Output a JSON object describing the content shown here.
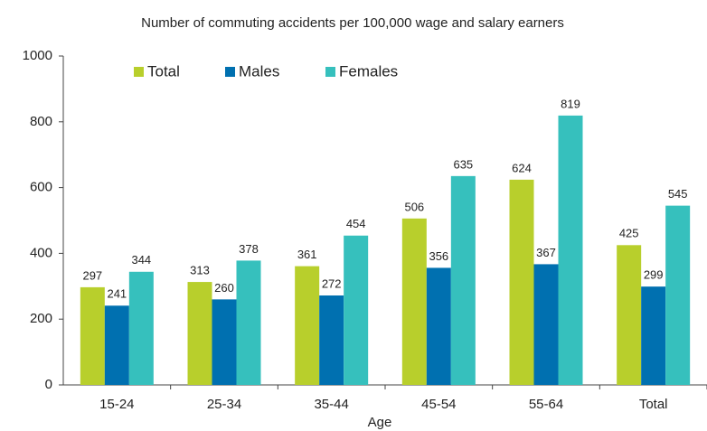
{
  "chart_data": {
    "type": "bar",
    "title": "Number of commuting accidents per 100,000 wage and salary earners",
    "x_label": "Age",
    "categories": [
      "15-24",
      "25-34",
      "35-44",
      "45-54",
      "55-64",
      "Total"
    ],
    "series": [
      {
        "name": "Total",
        "color": "#b8cf2c",
        "values": [
          297,
          313,
          361,
          506,
          624,
          425
        ]
      },
      {
        "name": "Males",
        "color": "#0070b0",
        "values": [
          241,
          260,
          272,
          356,
          367,
          299
        ]
      },
      {
        "name": "Females",
        "color": "#36c0bd",
        "values": [
          344,
          378,
          454,
          635,
          819,
          545
        ]
      }
    ],
    "ylim": [
      0,
      1000
    ],
    "yticks": [
      0,
      200,
      400,
      600,
      800,
      1000
    ],
    "grid": false,
    "legend": "top-left"
  }
}
